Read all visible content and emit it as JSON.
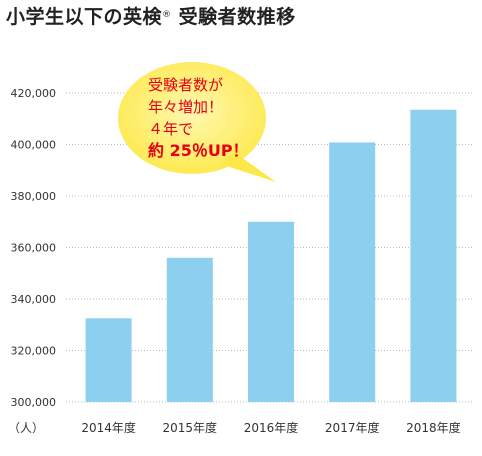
{
  "title": "小学生以下の英検",
  "title_mark": "®",
  "title_suffix": " 受験者数推移",
  "callout": {
    "line1": "受験者数が",
    "line2": "年々増加！",
    "line3": "４年で",
    "line4": "約 25％UP！",
    "bubble_color": "#fde84a",
    "text_color": "#e60012"
  },
  "chart_data": {
    "type": "bar",
    "categories": [
      "2014年度",
      "2015年度",
      "2016年度",
      "2017年度",
      "2018年度"
    ],
    "values": [
      332500,
      356000,
      370000,
      400800,
      413500
    ],
    "ylim": [
      300000,
      420000
    ],
    "yticks": [
      300000,
      320000,
      340000,
      360000,
      380000,
      400000,
      420000
    ],
    "ytick_labels": [
      "300,000",
      "320,000",
      "340,000",
      "360,000",
      "380,000",
      "400,000",
      "420,000"
    ],
    "unit_label": "（人）",
    "bar_color": "#8ccfef",
    "grid": true
  }
}
